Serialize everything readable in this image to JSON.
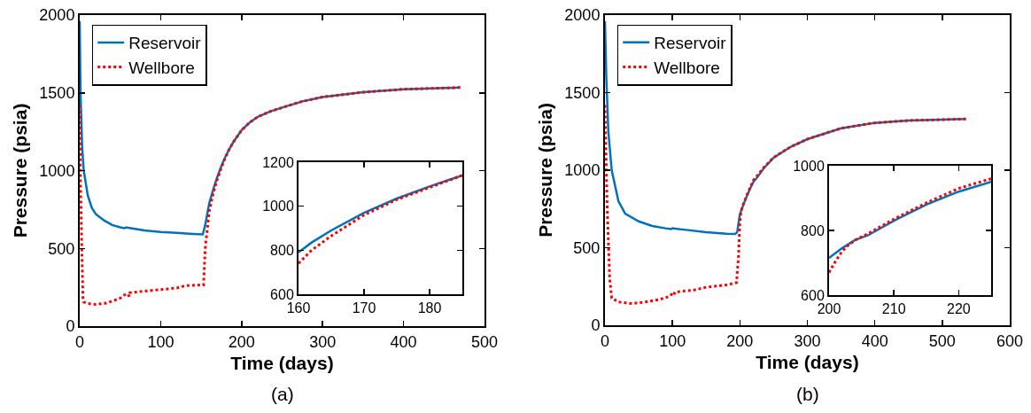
{
  "chart_data": [
    {
      "type": "line",
      "xlabel": "Time (days)",
      "ylabel": "Pressure (psia)",
      "xlim": [
        0,
        500
      ],
      "xticks": [
        0,
        100,
        200,
        300,
        400,
        500
      ],
      "ylim": [
        0,
        2000
      ],
      "yticks": [
        0,
        500,
        1000,
        1500,
        2000
      ],
      "grid": false,
      "legend": "top left",
      "annotations": [
        "(a)"
      ],
      "series": [
        {
          "name": "Reservoir",
          "color": "#0072bd",
          "line_style": "solid",
          "x": [
            0,
            1,
            3,
            5,
            10,
            15,
            20,
            30,
            40,
            50,
            55,
            58,
            60,
            80,
            100,
            120,
            140,
            152,
            155,
            160,
            165,
            170,
            175,
            180,
            185,
            190,
            200,
            210,
            220,
            235,
            250,
            275,
            300,
            350,
            400,
            470
          ],
          "values": [
            1960,
            1500,
            1150,
            1000,
            840,
            760,
            720,
            680,
            650,
            635,
            630,
            635,
            632,
            615,
            605,
            600,
            593,
            590,
            650,
            790,
            880,
            960,
            1030,
            1090,
            1140,
            1185,
            1260,
            1310,
            1346,
            1380,
            1405,
            1445,
            1473,
            1504,
            1523,
            1534
          ]
        },
        {
          "name": "Wellbore",
          "color": "#ff0000",
          "line_style": "dotted",
          "x": [
            0,
            1,
            3,
            4,
            5,
            10,
            20,
            30,
            40,
            50,
            55,
            60,
            61,
            62,
            80,
            100,
            120,
            130,
            150,
            153,
            155,
            160,
            165,
            170,
            175,
            180,
            185,
            190,
            200,
            210,
            220,
            235,
            250,
            275,
            300,
            350,
            400,
            470
          ],
          "values": [
            1420,
            900,
            400,
            180,
            155,
            145,
            140,
            145,
            160,
            180,
            200,
            205,
            190,
            215,
            225,
            235,
            245,
            260,
            265,
            265,
            500,
            740,
            855,
            945,
            1020,
            1085,
            1140,
            1185,
            1260,
            1310,
            1346,
            1380,
            1405,
            1445,
            1473,
            1504,
            1523,
            1534
          ]
        }
      ]
    },
    {
      "type": "line",
      "xlim": [
        160,
        185
      ],
      "xticks": [
        160,
        170,
        180
      ],
      "ylim": [
        600,
        1200
      ],
      "yticks": [
        600,
        800,
        1000,
        1200
      ],
      "grid": false,
      "series": [
        {
          "color": "#0072bd",
          "line_style": "solid",
          "x": [
            160,
            162,
            165,
            170,
            175,
            180,
            185
          ],
          "values": [
            790,
            835,
            890,
            970,
            1035,
            1090,
            1140
          ]
        },
        {
          "color": "#ff0000",
          "line_style": "dotted",
          "x": [
            160,
            162,
            165,
            170,
            175,
            180,
            185
          ],
          "values": [
            740,
            800,
            865,
            960,
            1030,
            1085,
            1140
          ]
        }
      ]
    },
    {
      "type": "line",
      "xlabel": "Time (days)",
      "ylabel": "Pressure (psia)",
      "xlim": [
        0,
        600
      ],
      "xticks": [
        0,
        100,
        200,
        300,
        400,
        500,
        600
      ],
      "ylim": [
        0,
        2000
      ],
      "yticks": [
        0,
        500,
        1000,
        1500,
        2000
      ],
      "grid": false,
      "legend": "top left",
      "annotations": [
        "(b)"
      ],
      "series": [
        {
          "name": "Reservoir",
          "color": "#0072bd",
          "line_style": "solid",
          "x": [
            0,
            2,
            5,
            10,
            20,
            30,
            50,
            70,
            90,
            98,
            100,
            120,
            150,
            180,
            193,
            196,
            200,
            205,
            210,
            215,
            220,
            225,
            235,
            250,
            275,
            300,
            350,
            400,
            450,
            535
          ],
          "values": [
            1960,
            1600,
            1250,
            1000,
            800,
            720,
            670,
            640,
            625,
            620,
            625,
            615,
            600,
            590,
            588,
            600,
            715,
            775,
            830,
            880,
            925,
            950,
            1010,
            1080,
            1150,
            1200,
            1270,
            1305,
            1320,
            1330
          ]
        },
        {
          "name": "Wellbore",
          "color": "#ff0000",
          "line_style": "dotted",
          "x": [
            0,
            3,
            7,
            10,
            20,
            40,
            60,
            80,
            95,
            100,
            102,
            104,
            130,
            150,
            180,
            195,
            198,
            200,
            202,
            205,
            210,
            215,
            220,
            225,
            235,
            250,
            275,
            300,
            350,
            400,
            450,
            535
          ],
          "values": [
            1420,
            800,
            300,
            175,
            150,
            140,
            150,
            165,
            185,
            205,
            195,
            215,
            225,
            245,
            260,
            275,
            450,
            670,
            740,
            780,
            835,
            885,
            935,
            960,
            1015,
            1082,
            1150,
            1200,
            1270,
            1305,
            1320,
            1330
          ]
        }
      ]
    },
    {
      "type": "line",
      "xlim": [
        200,
        225
      ],
      "xticks": [
        200,
        210,
        220
      ],
      "ylim": [
        600,
        1000
      ],
      "yticks": [
        600,
        800,
        1000
      ],
      "grid": false,
      "series": [
        {
          "color": "#0072bd",
          "line_style": "solid",
          "x": [
            200,
            202,
            204,
            206,
            210,
            215,
            220,
            225
          ],
          "values": [
            715,
            745,
            770,
            785,
            830,
            880,
            920,
            950
          ]
        },
        {
          "color": "#ff0000",
          "line_style": "dotted",
          "x": [
            200,
            201,
            202,
            203,
            204,
            206,
            210,
            215,
            220,
            225
          ],
          "values": [
            670,
            705,
            735,
            755,
            770,
            790,
            835,
            885,
            930,
            960
          ]
        }
      ]
    }
  ]
}
